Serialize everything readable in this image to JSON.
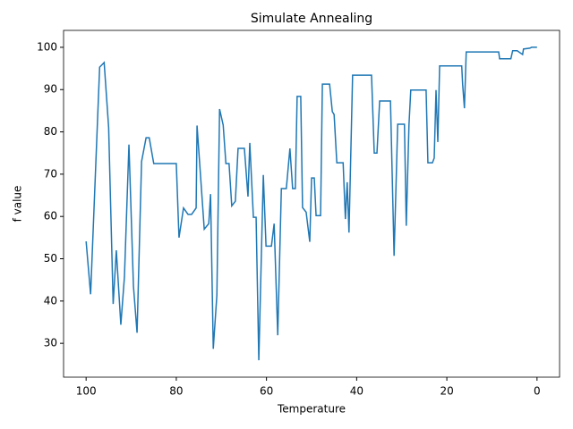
{
  "chart_data": {
    "type": "line",
    "title": "Simulate Annealing",
    "xlabel": "Temperature",
    "ylabel": "f value",
    "x": [
      100,
      99,
      97,
      96,
      95,
      94,
      93.3,
      92.3,
      91.5,
      90.5,
      89.5,
      88.7,
      87.7,
      86.7,
      86,
      85,
      80,
      79.4,
      78.4,
      77.4,
      76.6,
      75.6,
      75.4,
      73.8,
      72.8,
      72.4,
      71.8,
      71,
      70.4,
      69.6,
      69,
      68.3,
      67.7,
      66.9,
      66.3,
      64.9,
      64.1,
      63.7,
      62.9,
      62.3,
      61.7,
      60.7,
      60.1,
      58.9,
      58.3,
      57.5,
      56.7,
      55.6,
      54.8,
      54.2,
      53.6,
      53.2,
      52.4,
      52,
      51.2,
      50.4,
      50,
      49.4,
      49,
      48,
      47.6,
      46,
      45.4,
      45,
      44.4,
      43,
      42.5,
      42.1,
      41.7,
      40.9,
      36.7,
      36.1,
      35.5,
      34.9,
      32.5,
      31.7,
      31.2,
      30.9,
      29.4,
      29,
      28.4,
      28,
      24.6,
      24.2,
      23.2,
      22.8,
      22.4,
      22,
      21.6,
      16.7,
      16.5,
      16.1,
      15.7,
      8.5,
      8.3,
      5.8,
      5.4,
      4.4,
      3.2,
      3,
      1.6,
      1.2,
      0
    ],
    "series": [
      {
        "name": "f value",
        "color": "#1f77b4",
        "values": [
          54.1,
          41.6,
          95.3,
          96.4,
          81,
          39.3,
          52,
          34.4,
          45.7,
          77,
          43.5,
          32.5,
          73,
          78.6,
          78.6,
          72.5,
          72.5,
          55,
          62,
          60.5,
          60.5,
          62,
          81.5,
          57,
          58.3,
          65.3,
          28.7,
          41.4,
          85.4,
          81.6,
          72.5,
          72.5,
          62.5,
          63.6,
          76.1,
          76.1,
          64.7,
          77.4,
          59.8,
          59.8,
          26,
          69.8,
          53,
          53,
          58.3,
          31.9,
          66.6,
          66.6,
          76.1,
          66.6,
          66.6,
          88.4,
          88.4,
          62.1,
          61,
          54,
          69.1,
          69.1,
          60.2,
          60.2,
          91.3,
          91.3,
          84.8,
          84.1,
          72.7,
          72.7,
          59.4,
          68.1,
          56.2,
          93.4,
          93.4,
          75,
          75,
          87.3,
          87.3,
          50.7,
          70,
          81.8,
          81.8,
          57.8,
          81.6,
          89.9,
          89.9,
          72.7,
          72.7,
          73.8,
          89.9,
          77.6,
          95.6,
          95.6,
          91.3,
          85.6,
          98.9,
          98.9,
          97.3,
          97.3,
          99.2,
          99.2,
          98.3,
          99.6,
          99.8,
          100,
          100
        ]
      }
    ],
    "xlim": [
      105,
      -5
    ],
    "ylim": [
      22,
      104
    ],
    "xticks": [
      100,
      80,
      60,
      40,
      20,
      0
    ],
    "yticks": [
      30,
      40,
      50,
      60,
      70,
      80,
      90,
      100
    ]
  }
}
